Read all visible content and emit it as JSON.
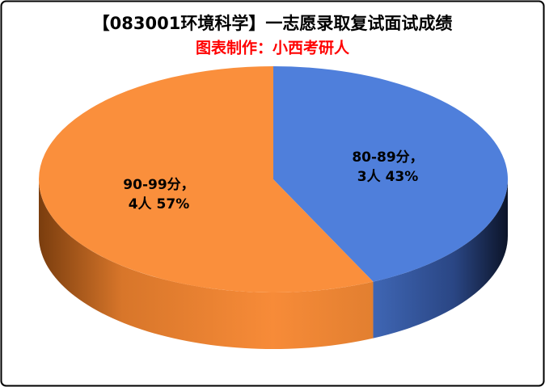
{
  "chart_data": {
    "type": "pie3d",
    "title": "【083001环境科学】一志愿录取复试面试成绩",
    "subtitle": "图表制作：小西考研人",
    "categories": [
      "80-89分，",
      "90-99分，"
    ],
    "values": [
      43,
      57
    ],
    "value_labels": [
      "43%",
      "57%"
    ],
    "counts": [
      3,
      4
    ],
    "count_labels": [
      "3人",
      "4人"
    ],
    "colors": [
      "#4f7fdb",
      "#fa8f3c"
    ]
  }
}
